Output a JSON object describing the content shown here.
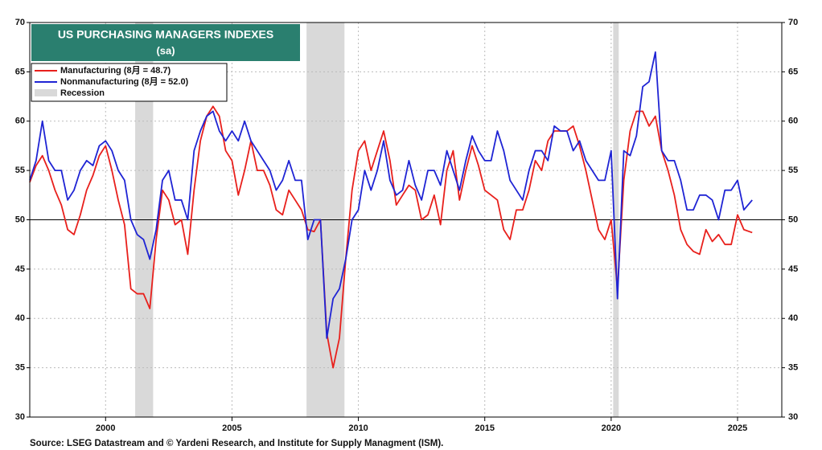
{
  "chart_data": {
    "type": "line",
    "title": "US PURCHASING MANAGERS INDEXES",
    "subtitle": "(sa)",
    "source": "Source: LSEG Datastream and © Yardeni Research, and Institute for Supply Managment (ISM).",
    "recession_label": "Recession",
    "recession_color": "#d9d9d9",
    "recessions": [
      [
        2001.17,
        2001.88
      ],
      [
        2007.95,
        2009.45
      ],
      [
        2020.08,
        2020.3
      ]
    ],
    "reference_line": 50,
    "xlim": [
      1997,
      2026.75
    ],
    "xticks": [
      2000,
      2005,
      2010,
      2015,
      2020,
      2025
    ],
    "ylim": [
      30,
      70
    ],
    "yticks": [
      30,
      35,
      40,
      45,
      50,
      55,
      60,
      65,
      70
    ],
    "y2lim": [
      30,
      70
    ],
    "y2ticks": [
      30,
      35,
      40,
      45,
      50,
      55,
      60,
      65,
      70
    ],
    "x": [
      1997.0,
      1997.25,
      1997.5,
      1997.75,
      1998.0,
      1998.25,
      1998.5,
      1998.75,
      1999.0,
      1999.25,
      1999.5,
      1999.75,
      2000.0,
      2000.25,
      2000.5,
      2000.75,
      2001.0,
      2001.25,
      2001.5,
      2001.75,
      2002.0,
      2002.25,
      2002.5,
      2002.75,
      2003.0,
      2003.25,
      2003.5,
      2003.75,
      2004.0,
      2004.25,
      2004.5,
      2004.75,
      2005.0,
      2005.25,
      2005.5,
      2005.75,
      2006.0,
      2006.25,
      2006.5,
      2006.75,
      2007.0,
      2007.25,
      2007.5,
      2007.75,
      2008.0,
      2008.25,
      2008.5,
      2008.75,
      2009.0,
      2009.25,
      2009.5,
      2009.75,
      2010.0,
      2010.25,
      2010.5,
      2010.75,
      2011.0,
      2011.25,
      2011.5,
      2011.75,
      2012.0,
      2012.25,
      2012.5,
      2012.75,
      2013.0,
      2013.25,
      2013.5,
      2013.75,
      2014.0,
      2014.25,
      2014.5,
      2014.75,
      2015.0,
      2015.25,
      2015.5,
      2015.75,
      2016.0,
      2016.25,
      2016.5,
      2016.75,
      2017.0,
      2017.25,
      2017.5,
      2017.75,
      2018.0,
      2018.25,
      2018.5,
      2018.75,
      2019.0,
      2019.25,
      2019.5,
      2019.75,
      2020.0,
      2020.25,
      2020.5,
      2020.75,
      2021.0,
      2021.25,
      2021.5,
      2021.75,
      2022.0,
      2022.25,
      2022.5,
      2022.75,
      2023.0,
      2023.25,
      2023.5,
      2023.75,
      2024.0,
      2024.25,
      2024.5,
      2024.75,
      2025.0,
      2025.25,
      2025.58
    ],
    "series": [
      {
        "name": "Manufacturing (8月 = 48.7)",
        "color": "#e8201c",
        "values": [
          53.8,
          55.5,
          56.5,
          55,
          53,
          51.5,
          49,
          48.5,
          50.5,
          53,
          54.5,
          56.5,
          57.5,
          55,
          52,
          49.5,
          43,
          42.5,
          42.5,
          41,
          48,
          53,
          52,
          49.5,
          50,
          46.5,
          53,
          58,
          60.5,
          61.5,
          60.5,
          57,
          56,
          52.5,
          55,
          58,
          55,
          55,
          53.5,
          51,
          50.5,
          53,
          52,
          51,
          49,
          48.8,
          50,
          38.5,
          35,
          38,
          46,
          53,
          57,
          58,
          55,
          57,
          59,
          56,
          51.5,
          52.5,
          53.5,
          53,
          50,
          50.5,
          52.5,
          49.5,
          55,
          57,
          52,
          55,
          57.5,
          55.5,
          53,
          52.5,
          52,
          49,
          48,
          51,
          51,
          53,
          56,
          55,
          58,
          59,
          59,
          59,
          59.5,
          57.5,
          55,
          52,
          49,
          48,
          50,
          43,
          54,
          59,
          61,
          61,
          59.5,
          60.5,
          57,
          55,
          52.5,
          49,
          47.5,
          46.8,
          46.5,
          49,
          47.8,
          48.5,
          47.5,
          47.5,
          50.5,
          49,
          48.7
        ]
      },
      {
        "name": "Nonmanufacturing  (8月 = 52.0)",
        "color": "#1f24d4",
        "values": [
          54,
          56,
          60,
          56,
          55,
          55,
          52,
          53,
          55,
          56,
          55.5,
          57.5,
          58,
          57,
          55,
          54,
          50,
          48.5,
          48,
          46,
          49,
          54,
          55,
          52,
          52,
          50,
          57,
          59,
          60.5,
          61,
          59,
          58,
          59,
          58,
          60,
          58,
          57,
          56,
          55,
          53,
          54,
          56,
          54,
          54,
          48,
          50,
          50,
          38,
          42,
          43,
          46,
          50,
          51,
          55,
          53,
          55,
          58,
          54,
          52.5,
          53,
          56,
          53.5,
          52,
          55,
          55,
          53.5,
          57,
          55,
          53,
          56,
          58.5,
          57,
          56,
          56,
          59,
          57,
          54,
          53,
          52,
          55,
          57,
          57,
          56,
          59.5,
          59,
          59,
          57,
          58,
          56,
          55,
          54,
          54,
          57,
          42,
          57,
          56.5,
          58.5,
          63.5,
          64,
          67,
          57,
          56,
          56,
          54,
          51,
          51,
          52.5,
          52.5,
          52,
          50,
          53,
          53,
          54,
          51,
          52.0
        ]
      }
    ]
  }
}
